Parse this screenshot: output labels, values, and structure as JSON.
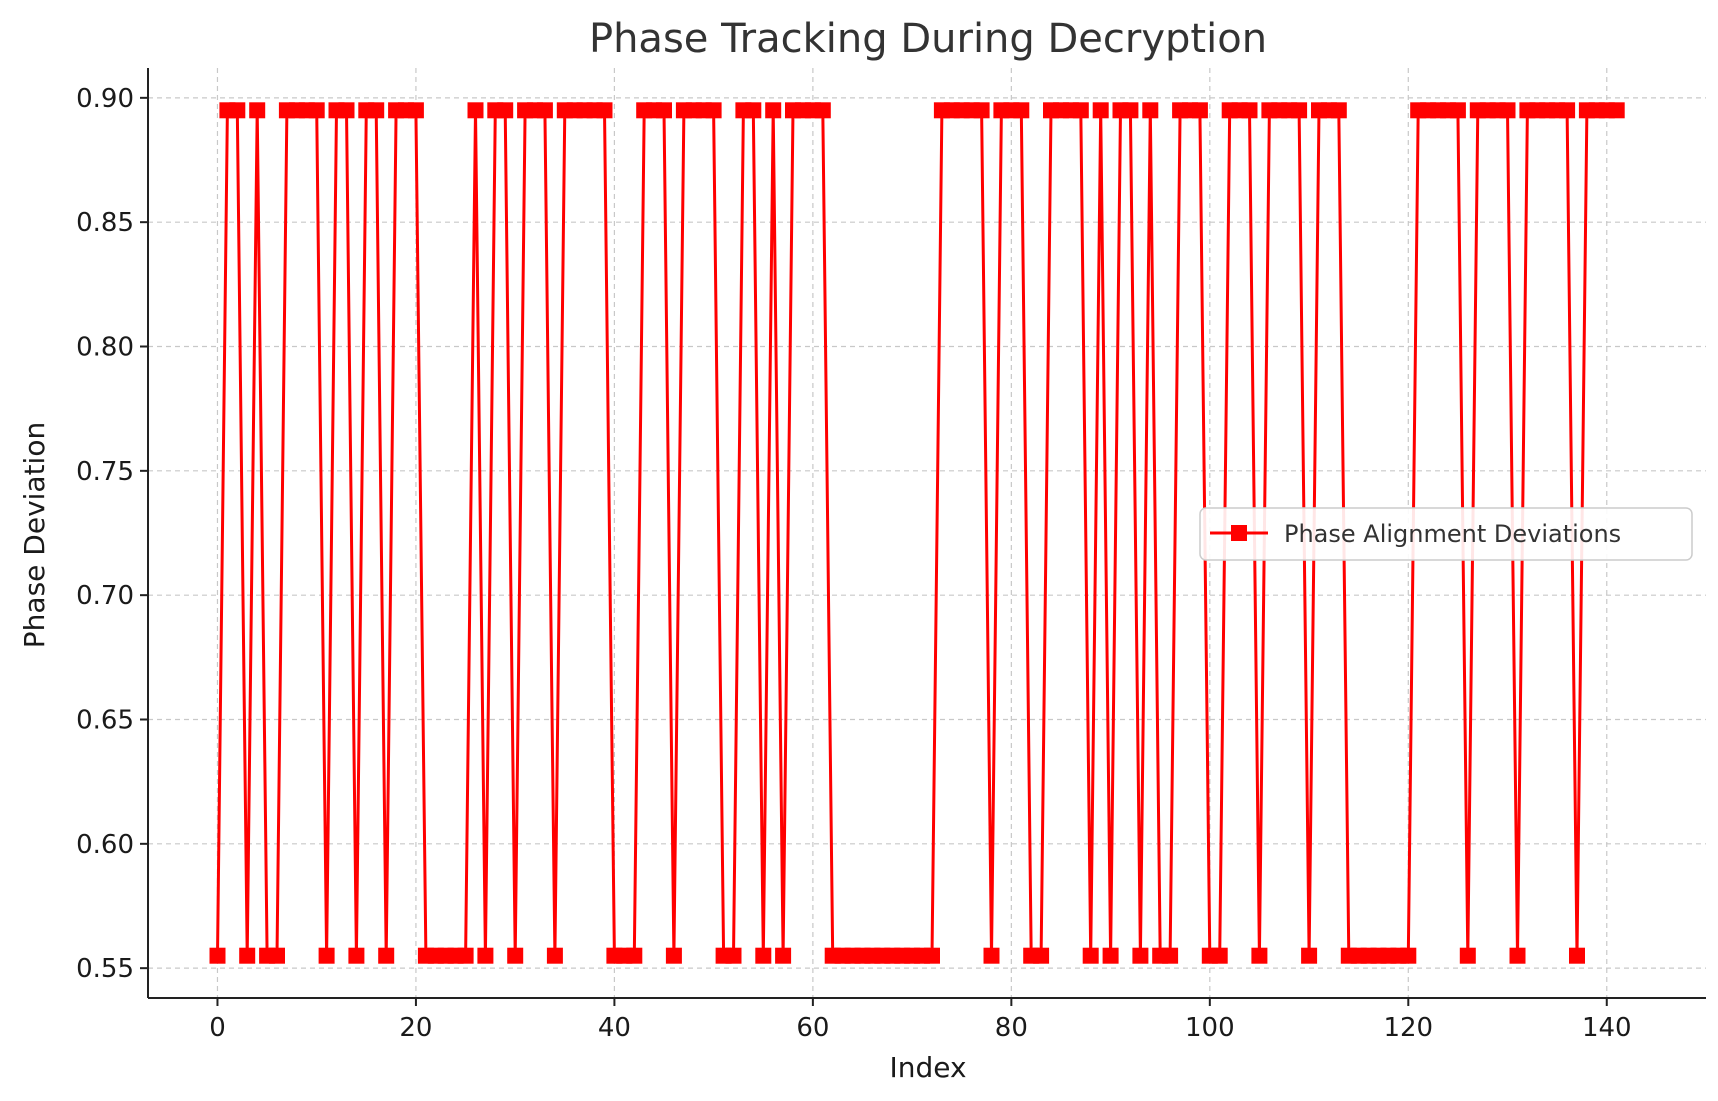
{
  "chart_data": {
    "type": "line",
    "title": "Phase Tracking During Decryption",
    "xlabel": "Index",
    "ylabel": "Phase Deviation",
    "xlim": [
      -7,
      150
    ],
    "ylim": [
      0.538,
      0.912
    ],
    "x_ticks": [
      0,
      20,
      40,
      60,
      80,
      100,
      120,
      140
    ],
    "x_tick_labels": [
      "0",
      "20",
      "40",
      "60",
      "80",
      "100",
      "120",
      "140"
    ],
    "y_ticks": [
      0.55,
      0.6,
      0.65,
      0.7,
      0.75,
      0.8,
      0.85,
      0.9
    ],
    "y_tick_labels": [
      "0.55",
      "0.60",
      "0.65",
      "0.70",
      "0.75",
      "0.80",
      "0.85",
      "0.90"
    ],
    "grid": true,
    "grid_style": "dashed",
    "legend_position": "center-right",
    "series": [
      {
        "name": "Phase Alignment Deviations",
        "color": "#ff0000",
        "marker": "square",
        "low": 0.555,
        "high": 0.895,
        "pattern": "0110100111101101101110000010110111011111000111011110011010111100000000000111110111001111010110100111001110111101110000000111110111101111101111"
      }
    ]
  }
}
